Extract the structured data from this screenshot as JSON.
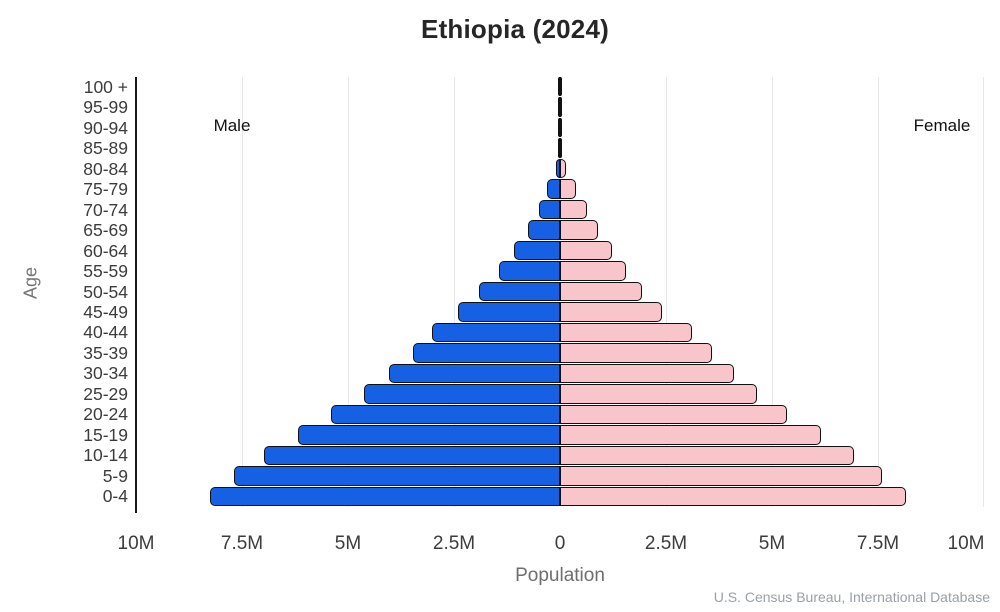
{
  "title": "Ethiopia (2024)",
  "labels": {
    "male": "Male",
    "female": "Female",
    "x_axis": "Population",
    "y_axis": "Age"
  },
  "source": "U.S. Census Bureau, International Database",
  "colors": {
    "male_bar": "#1661e3",
    "female_bar": "#f8c6ca",
    "bar_outline": "#111111",
    "gridline": "#e7e7e7",
    "axis_line": "#1a1a1a",
    "title_text": "#262626",
    "tick_text": "#3c3c3c",
    "axis_title_text": "#6e6e6e",
    "source_text": "#9aa0a6"
  },
  "chart_data": {
    "type": "bar",
    "subtype": "population-pyramid",
    "orientation": "horizontal",
    "title": "Ethiopia (2024)",
    "xlabel": "Population",
    "ylabel": "Age",
    "unit": "millions of people",
    "xlim": [
      -10,
      10
    ],
    "grid": true,
    "grid_positions_m": [
      -7.5,
      -5,
      -2.5,
      2.5,
      5,
      7.5,
      10
    ],
    "x_ticks": [
      {
        "label": "10M",
        "m": -10
      },
      {
        "label": "7.5M",
        "m": -7.5
      },
      {
        "label": "5M",
        "m": -5
      },
      {
        "label": "2.5M",
        "m": -2.5
      },
      {
        "label": "0",
        "m": 0
      },
      {
        "label": "2.5M",
        "m": 2.5
      },
      {
        "label": "5M",
        "m": 5
      },
      {
        "label": "7.5M",
        "m": 7.5
      },
      {
        "label": "10M",
        "m": 10
      }
    ],
    "categories": [
      "0-4",
      "5-9",
      "10-14",
      "15-19",
      "20-24",
      "25-29",
      "30-34",
      "35-39",
      "40-44",
      "45-49",
      "50-54",
      "55-59",
      "60-64",
      "65-69",
      "70-74",
      "75-79",
      "80-84",
      "85-89",
      "90-94",
      "95-99",
      "100 +"
    ],
    "series": [
      {
        "name": "Male",
        "side": "left",
        "color": "#1661e3",
        "values": [
          8.28,
          7.72,
          7.0,
          6.21,
          5.43,
          4.64,
          4.06,
          3.48,
          3.05,
          2.42,
          1.94,
          1.47,
          1.1,
          0.78,
          0.53,
          0.32,
          0.12,
          0.05,
          0.015,
          0.005,
          0.003
        ]
      },
      {
        "name": "Female",
        "side": "right",
        "color": "#f8c6ca",
        "values": [
          8.19,
          7.62,
          6.96,
          6.18,
          5.38,
          4.68,
          4.13,
          3.62,
          3.14,
          2.42,
          1.95,
          1.57,
          1.24,
          0.91,
          0.65,
          0.39,
          0.16,
          0.06,
          0.02,
          0.006,
          0.003
        ]
      }
    ],
    "legend_position": "inside-top: Male left, Female right"
  }
}
